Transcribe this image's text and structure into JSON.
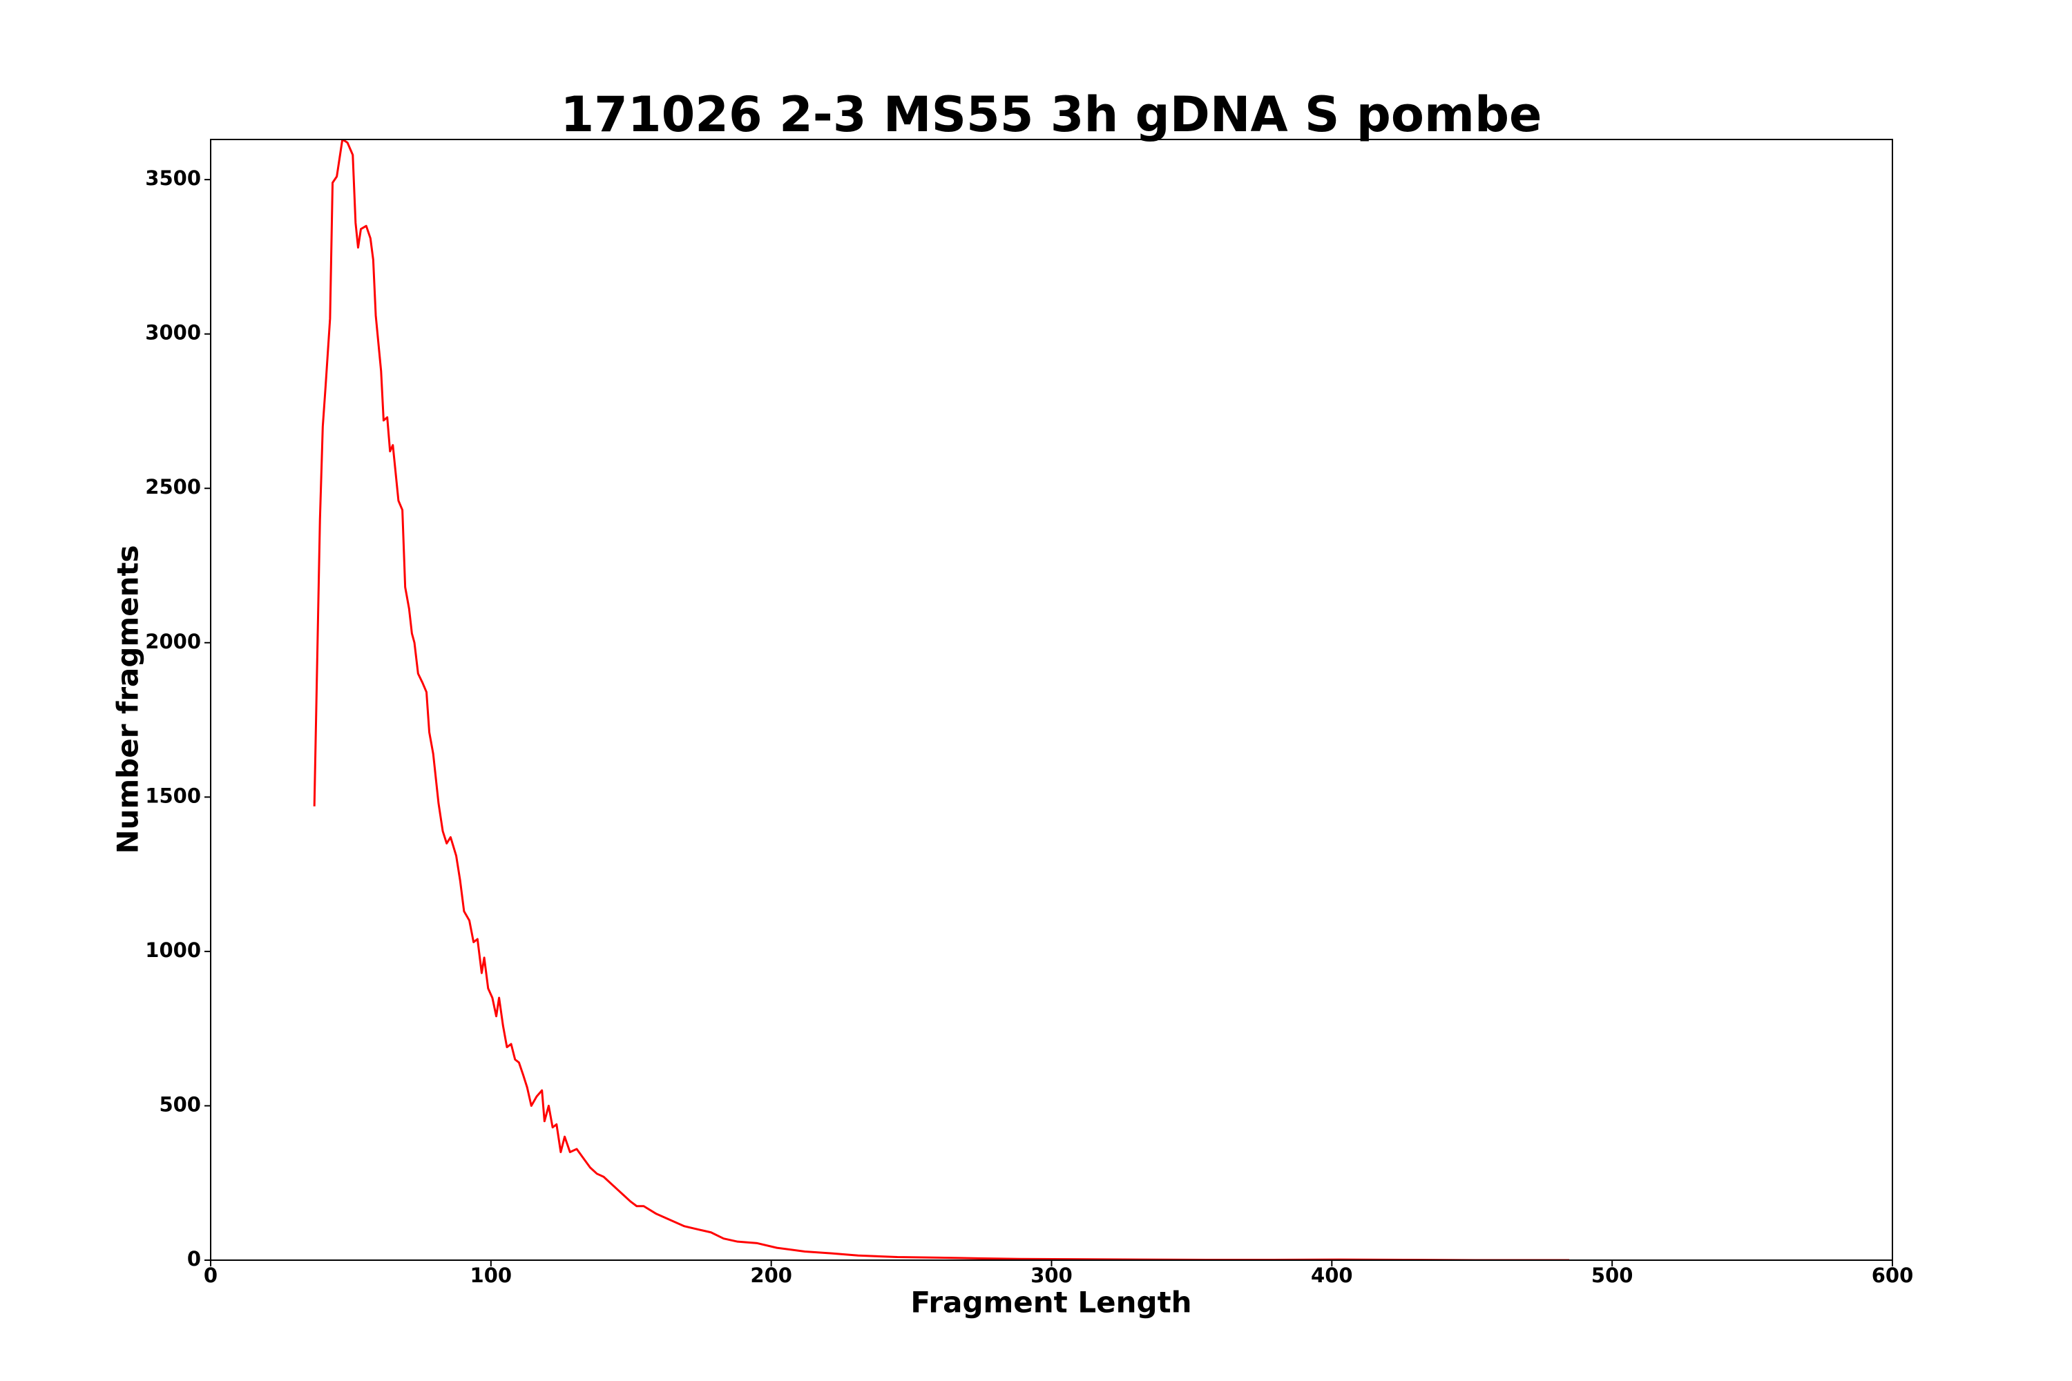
{
  "chart_data": {
    "type": "line",
    "title": "171026 2-3 MS55 3h gDNA S pombe",
    "x_label": "Fragment Length",
    "y_label": "Number fragments",
    "x": [
      37,
      39,
      40,
      41,
      42.6,
      43.5,
      45,
      47,
      48.8,
      50.7,
      51.7,
      52.6,
      53.6,
      55.5,
      57,
      58,
      58.9,
      60.8,
      61.7,
      63,
      64,
      65,
      67,
      68.4,
      69.4,
      70.8,
      71.8,
      72.7,
      74,
      75.6,
      77,
      78,
      79.4,
      81.3,
      82.8,
      84.2,
      85.6,
      87.6,
      89,
      90.4,
      92.3,
      93.8,
      95.2,
      96.7,
      97.6,
      99,
      100.5,
      101.9,
      102.9,
      104.3,
      105.7,
      107.2,
      108.6,
      110,
      111.5,
      112.9,
      114.4,
      116.3,
      118.2,
      119.1,
      120.6,
      122,
      123.4,
      124.9,
      126.3,
      128.2,
      130.6,
      133,
      135.4,
      137.8,
      140.2,
      142.6,
      145,
      147.4,
      149.8,
      152,
      154.5,
      159,
      164,
      169,
      173.7,
      178.5,
      183,
      188,
      195,
      202,
      212,
      221.5,
      231,
      245,
      260,
      274,
      288.5,
      307.7,
      331.6,
      355.5,
      379,
      403,
      427,
      451,
      484.7
    ],
    "values": [
      1470,
      2400,
      2700,
      2830,
      3050,
      3490,
      3510,
      3630,
      3620,
      3580,
      3360,
      3280,
      3340,
      3350,
      3310,
      3240,
      3060,
      2880,
      2720,
      2730,
      2620,
      2640,
      2460,
      2430,
      2180,
      2110,
      2030,
      2000,
      1900,
      1870,
      1840,
      1710,
      1640,
      1480,
      1390,
      1350,
      1370,
      1310,
      1230,
      1130,
      1100,
      1030,
      1040,
      930,
      980,
      880,
      850,
      790,
      850,
      760,
      690,
      700,
      650,
      640,
      600,
      560,
      500,
      530,
      550,
      450,
      500,
      430,
      440,
      350,
      400,
      350,
      360,
      330,
      300,
      280,
      270,
      250,
      230,
      210,
      190,
      175,
      175,
      150,
      130,
      110,
      100,
      90,
      70,
      60,
      55,
      40,
      28,
      22,
      15,
      10,
      8,
      6,
      4,
      3,
      2,
      1,
      1,
      2,
      1,
      0,
      0
    ],
    "color": "#ff0000",
    "xlim": [
      0,
      600
    ],
    "xticks": [
      0,
      100,
      200,
      300,
      400,
      500,
      600
    ],
    "ylim": [
      0,
      3630
    ],
    "yticks": [
      0,
      500,
      1000,
      1500,
      2000,
      2500,
      3000,
      3500
    ],
    "grid": false
  }
}
